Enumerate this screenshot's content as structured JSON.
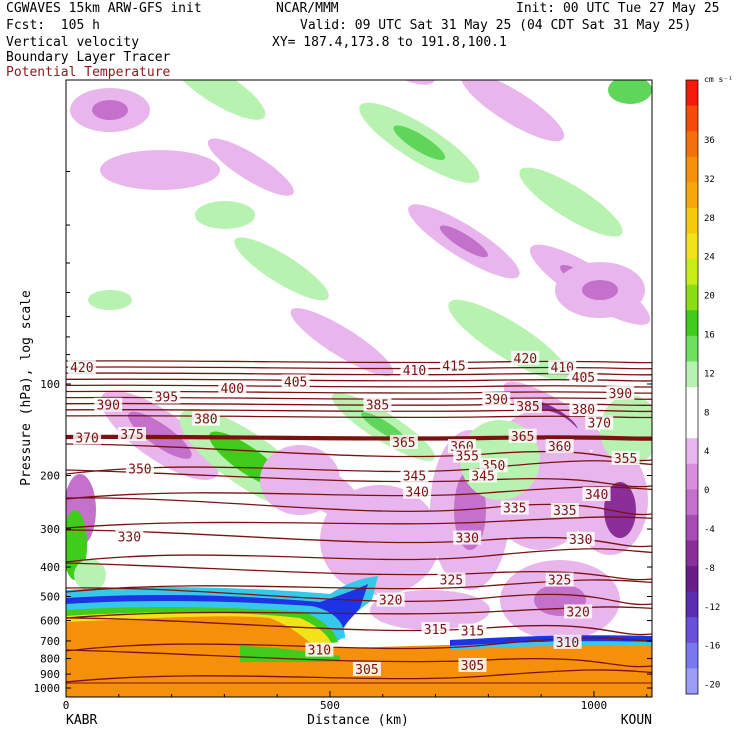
{
  "header": {
    "model": "CGWAVES 15km ARW-GFS init",
    "forecast": "Fcst:  105 h",
    "field1": "Vertical velocity",
    "field2": "Boundary Layer Tracer",
    "field3": "Potential Temperature",
    "center": "NCAR/MMM",
    "init": "Init: 00 UTC Tue 27 May 25",
    "valid": "Valid: 09 UTC Sat 31 May 25 (04 CDT Sat 31 May 25)",
    "xy": "XY= 187.4,173.8 to 191.8,100.1"
  },
  "colors": {
    "theta": "#7a1212",
    "tracer_orange": "#f5900a",
    "tracer_yellow": "#f2e21a",
    "tracer_green": "#3fcc1a",
    "tracer_cyan": "#36c8e8",
    "tracer_blue": "#1e32e6",
    "up_light": "#b8f2b0",
    "up_mid": "#5fd65a",
    "down_light": "#e8b6ec",
    "down_mid": "#c471cc",
    "down_dark": "#8a2e9a"
  },
  "chart_data": {
    "type": "cross-section",
    "xlabel": "Distance (km)",
    "ylabel": "Pressure (hPa), log scale",
    "x_ticks": [
      "0",
      "500",
      "1000"
    ],
    "x_range": [
      0,
      1110
    ],
    "endpoints": {
      "left": "KABR",
      "right": "KOUN"
    },
    "y_scale": "log",
    "y_ticks": [
      "100",
      "200",
      "300",
      "400",
      "500",
      "600",
      "700",
      "800",
      "900",
      "1000"
    ],
    "colorbar": {
      "unit": "cm s⁻¹",
      "labels": [
        "36",
        "32",
        "28",
        "24",
        "20",
        "16",
        "12",
        "8",
        "4",
        "0",
        "-4",
        "-8",
        "-12",
        "-16",
        "-20"
      ],
      "colors": [
        "#f41a0a",
        "#f44a0a",
        "#f4700a",
        "#f5900a",
        "#f5a80a",
        "#f5c80a",
        "#f2e21a",
        "#c8ee1a",
        "#8cde14",
        "#3fcc1a",
        "#6ee060",
        "#b8f2b0",
        "#ffffff",
        "#ffffff",
        "#e8b6ec",
        "#d98fdd",
        "#c471cc",
        "#a64cb4",
        "#8a2e9a",
        "#6a1d88",
        "#5a2eb0",
        "#6a50d8",
        "#7a78ee",
        "#9a9cf6"
      ]
    },
    "theta_labels": [
      {
        "text": "420",
        "x": 30,
        "p": 88
      },
      {
        "text": "390",
        "x": 80,
        "p": 117
      },
      {
        "text": "395",
        "x": 190,
        "p": 110
      },
      {
        "text": "400",
        "x": 315,
        "p": 103
      },
      {
        "text": "405",
        "x": 435,
        "p": 98
      },
      {
        "text": "410",
        "x": 660,
        "p": 90
      },
      {
        "text": "415",
        "x": 735,
        "p": 87
      },
      {
        "text": "420",
        "x": 870,
        "p": 82
      },
      {
        "text": "410",
        "x": 940,
        "p": 88
      },
      {
        "text": "405",
        "x": 980,
        "p": 95
      },
      {
        "text": "390",
        "x": 1050,
        "p": 107
      },
      {
        "text": "380",
        "x": 265,
        "p": 130
      },
      {
        "text": "385",
        "x": 590,
        "p": 117
      },
      {
        "text": "390",
        "x": 815,
        "p": 112
      },
      {
        "text": "385",
        "x": 875,
        "p": 118
      },
      {
        "text": "380",
        "x": 980,
        "p": 121
      },
      {
        "text": "370",
        "x": 1010,
        "p": 134
      },
      {
        "text": "370",
        "x": 40,
        "p": 150
      },
      {
        "text": "375",
        "x": 125,
        "p": 146
      },
      {
        "text": "365",
        "x": 640,
        "p": 155
      },
      {
        "text": "365",
        "x": 865,
        "p": 148
      },
      {
        "text": "360",
        "x": 750,
        "p": 160
      },
      {
        "text": "360",
        "x": 935,
        "p": 160
      },
      {
        "text": "355",
        "x": 760,
        "p": 172
      },
      {
        "text": "355",
        "x": 1060,
        "p": 175
      },
      {
        "text": "350",
        "x": 140,
        "p": 190
      },
      {
        "text": "350",
        "x": 810,
        "p": 185
      },
      {
        "text": "345",
        "x": 660,
        "p": 200
      },
      {
        "text": "345",
        "x": 790,
        "p": 200
      },
      {
        "text": "340",
        "x": 665,
        "p": 226
      },
      {
        "text": "340",
        "x": 1005,
        "p": 230
      },
      {
        "text": "335",
        "x": 850,
        "p": 255
      },
      {
        "text": "335",
        "x": 945,
        "p": 260
      },
      {
        "text": "330",
        "x": 120,
        "p": 318
      },
      {
        "text": "330",
        "x": 760,
        "p": 320
      },
      {
        "text": "330",
        "x": 975,
        "p": 323
      },
      {
        "text": "325",
        "x": 730,
        "p": 440
      },
      {
        "text": "325",
        "x": 935,
        "p": 440
      },
      {
        "text": "320",
        "x": 615,
        "p": 512
      },
      {
        "text": "320",
        "x": 970,
        "p": 560
      },
      {
        "text": "315",
        "x": 700,
        "p": 640
      },
      {
        "text": "315",
        "x": 770,
        "p": 648
      },
      {
        "text": "310",
        "x": 480,
        "p": 748
      },
      {
        "text": "310",
        "x": 950,
        "p": 705
      },
      {
        "text": "305",
        "x": 570,
        "p": 865
      },
      {
        "text": "305",
        "x": 770,
        "p": 840
      }
    ]
  }
}
